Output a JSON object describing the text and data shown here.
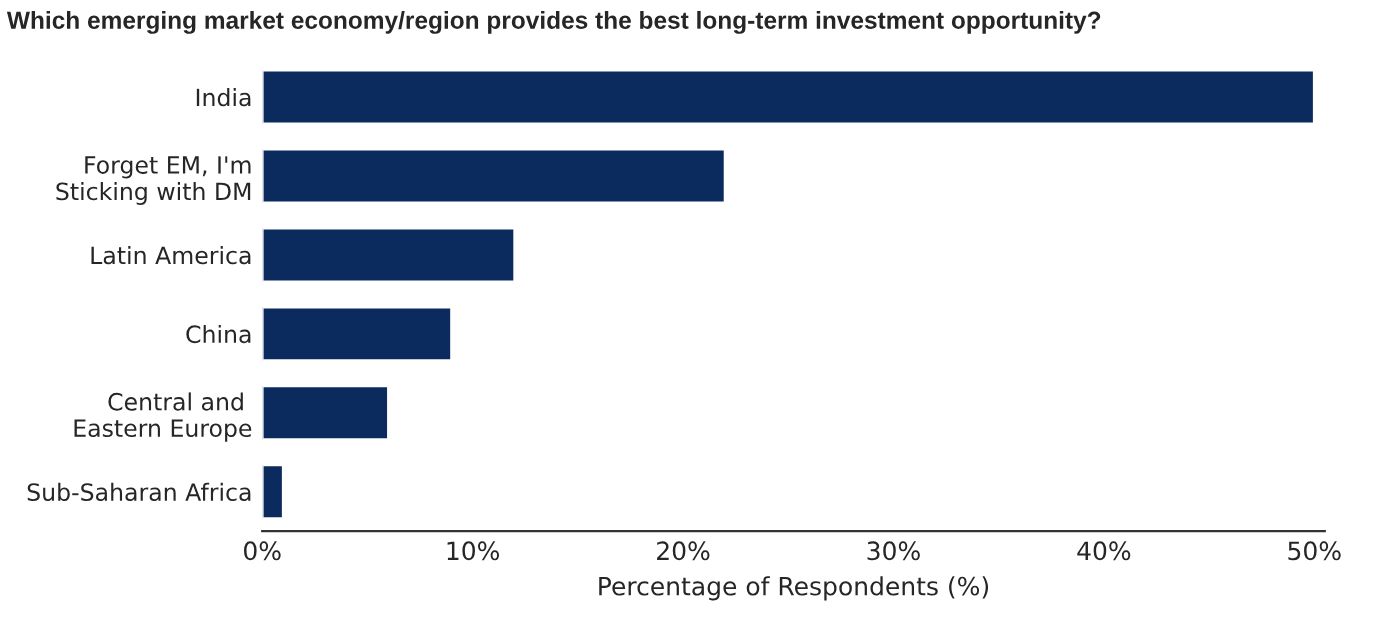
{
  "chart_data": {
    "type": "bar",
    "orientation": "horizontal",
    "title": "Which emerging market economy/region provides the best long-term investment opportunity?",
    "categories": [
      "India",
      "Forget EM, I'm\nSticking with DM",
      "Latin America",
      "China",
      "Central and \nEastern Europe",
      "Sub-Saharan Africa"
    ],
    "values": [
      50,
      22,
      12,
      9,
      6,
      1
    ],
    "color": "#0b2a5e",
    "xlim": [
      0,
      50.5
    ],
    "xticks": [
      {
        "value": 0,
        "label": "0%"
      },
      {
        "value": 10,
        "label": "10%"
      },
      {
        "value": 20,
        "label": "20%"
      },
      {
        "value": 30,
        "label": "30%"
      },
      {
        "value": 40,
        "label": "40%"
      },
      {
        "value": 50,
        "label": "50%"
      }
    ],
    "xlabel": "Percentage of Respondents (%)",
    "grid": false
  }
}
